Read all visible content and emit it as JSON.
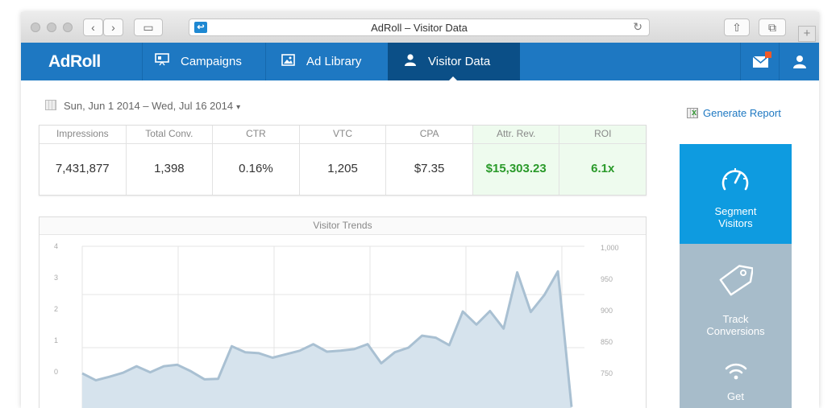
{
  "browser": {
    "title": "AdRoll – Visitor Data"
  },
  "nav": {
    "logo": "AdRoll",
    "items": [
      {
        "label": "Campaigns",
        "icon": "presentation-icon"
      },
      {
        "label": "Ad Library",
        "icon": "image-icon"
      },
      {
        "label": "Visitor Data",
        "icon": "person-icon",
        "active": true
      }
    ],
    "accent_color": "#1e78c2",
    "active_color": "#0b4f87"
  },
  "date_range": "Sun, Jun 1 2014 – Wed, Jul 16 2014",
  "generate_report": "Generate Report",
  "stats": [
    {
      "label": "Impressions",
      "value": "7,431,877"
    },
    {
      "label": "Total Conv.",
      "value": "1,398"
    },
    {
      "label": "CTR",
      "value": "0.16%"
    },
    {
      "label": "VTC",
      "value": "1,205"
    },
    {
      "label": "CPA",
      "value": "$7.35"
    },
    {
      "label": "Attr. Rev.",
      "value": "$15,303.23"
    },
    {
      "label": "ROI",
      "value": "6.1x"
    }
  ],
  "sidebar": {
    "segment": "Segment Visitors",
    "segment_lines": [
      "Segment",
      "Visitors"
    ],
    "track_lines": [
      "Track",
      "Conversions"
    ],
    "get_lines": [
      "Get"
    ]
  },
  "chart_data": {
    "type": "area",
    "title": "Visitor Trends",
    "left_ticks": [
      "4",
      "3",
      "2",
      "1",
      "0"
    ],
    "right_ticks": [
      "1,000",
      "950",
      "900",
      "850",
      "750"
    ],
    "ylim": [
      700,
      1000
    ],
    "grid": true,
    "series": [
      {
        "values": [
          747,
          733,
          740,
          748,
          761,
          749,
          761,
          764,
          751,
          735,
          736,
          801,
          789,
          787,
          778,
          785,
          792,
          805,
          790,
          792,
          795,
          805,
          767,
          789,
          798,
          822,
          818,
          803,
          870,
          844,
          871,
          836,
          948,
          869,
          903,
          950,
          680
        ]
      }
    ]
  }
}
